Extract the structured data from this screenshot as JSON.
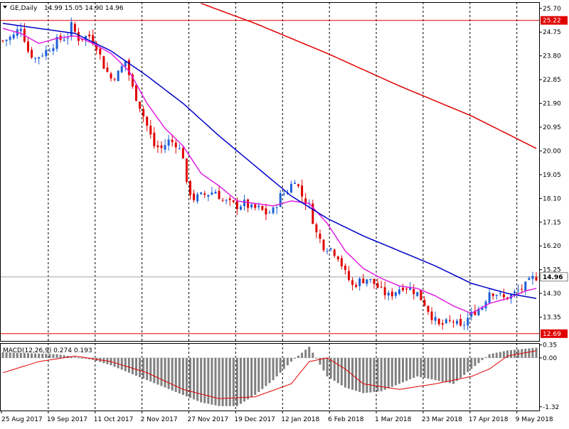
{
  "symbol_header": {
    "title": "GE,Daily",
    "ohlc": "14.99 15.05 14.90 14.96"
  },
  "macd_label": "MACD(12,26,9) 0.274 0.193",
  "colors": {
    "bull": "#1c5fd6",
    "bear": "#e00000",
    "ma_fast": "#e020e0",
    "ma_mid": "#0000c8",
    "ma_slow": "#e00000",
    "hline": "#e00000",
    "last_price_line": "#a0a0a0",
    "macd_hist": "#808080",
    "macd_signal": "#e00000"
  },
  "chart_data": [
    {
      "type": "candlestick",
      "title": "GE,Daily",
      "y_ticks": [
        "25.70",
        "24.75",
        "23.80",
        "22.85",
        "21.90",
        "20.95",
        "20.00",
        "19.05",
        "18.10",
        "17.15",
        "16.20",
        "15.25",
        "14.30",
        "13.35"
      ],
      "ylim": [
        12.4,
        25.95
      ],
      "x_ticks": [
        "25 Aug 2017",
        "19 Sep 2017",
        "11 Oct 2017",
        "2 Nov 2017",
        "27 Nov 2017",
        "19 Dec 2017",
        "12 Jan 2018",
        "6 Feb 2018",
        "1 Mar 2018",
        "23 Mar 2018",
        "17 Apr 2018",
        "9 May 2018"
      ],
      "horizontal_lines": [
        {
          "label": "25.22",
          "value": 25.22
        },
        {
          "label": "12.69",
          "value": 12.69
        }
      ],
      "last_price": {
        "label": "14.96",
        "value": 14.96
      },
      "close_path": [
        [
          0,
          24.4
        ],
        [
          3,
          24.6
        ],
        [
          5,
          25.0
        ],
        [
          7,
          24.0
        ],
        [
          9,
          23.7
        ],
        [
          12,
          24.0
        ],
        [
          15,
          24.4
        ],
        [
          18,
          24.6
        ],
        [
          19,
          25.0
        ],
        [
          21,
          24.5
        ],
        [
          24,
          24.6
        ],
        [
          26,
          24.2
        ],
        [
          28,
          23.4
        ],
        [
          30,
          22.9
        ],
        [
          32,
          23.1
        ],
        [
          34,
          23.6
        ],
        [
          36,
          22.5
        ],
        [
          38,
          21.8
        ],
        [
          40,
          21.0
        ],
        [
          42,
          20.2
        ],
        [
          44,
          20.1
        ],
        [
          46,
          20.4
        ],
        [
          48,
          20.3
        ],
        [
          50,
          19.8
        ],
        [
          51,
          18.6
        ],
        [
          53,
          18.1
        ],
        [
          55,
          18.2
        ],
        [
          57,
          18.3
        ],
        [
          59,
          18.4
        ],
        [
          61,
          18.0
        ],
        [
          63,
          17.9
        ],
        [
          65,
          17.8
        ],
        [
          67,
          17.9
        ],
        [
          69,
          17.7
        ],
        [
          71,
          17.7
        ],
        [
          73,
          17.5
        ],
        [
          75,
          17.6
        ],
        [
          77,
          18.2
        ],
        [
          79,
          18.4
        ],
        [
          81,
          18.9
        ],
        [
          83,
          18.2
        ],
        [
          85,
          17.8
        ],
        [
          87,
          16.7
        ],
        [
          89,
          16.2
        ],
        [
          91,
          16.1
        ],
        [
          93,
          15.8
        ],
        [
          95,
          15.1
        ],
        [
          97,
          14.6
        ],
        [
          99,
          14.8
        ],
        [
          101,
          14.9
        ],
        [
          103,
          14.7
        ],
        [
          105,
          14.4
        ],
        [
          107,
          14.2
        ],
        [
          109,
          14.4
        ],
        [
          111,
          14.6
        ],
        [
          113,
          14.5
        ],
        [
          115,
          14.3
        ],
        [
          117,
          13.9
        ],
        [
          119,
          13.4
        ],
        [
          121,
          13.0
        ],
        [
          123,
          13.1
        ],
        [
          125,
          13.2
        ],
        [
          127,
          12.9
        ],
        [
          129,
          13.3
        ],
        [
          131,
          13.6
        ],
        [
          133,
          13.8
        ],
        [
          135,
          14.4
        ],
        [
          137,
          14.3
        ],
        [
          139,
          14.1
        ],
        [
          141,
          14.2
        ],
        [
          143,
          14.4
        ],
        [
          145,
          14.6
        ],
        [
          147,
          14.9
        ],
        [
          148,
          14.96
        ]
      ],
      "series": [
        {
          "name": "",
          "kind": "ma",
          "color_key": "ma_fast",
          "points": [
            [
              0,
              24.9
            ],
            [
              5,
              24.7
            ],
            [
              10,
              24.3
            ],
            [
              15,
              24.5
            ],
            [
              20,
              24.6
            ],
            [
              25,
              24.3
            ],
            [
              30,
              23.9
            ],
            [
              35,
              23.2
            ],
            [
              40,
              21.9
            ],
            [
              45,
              20.9
            ],
            [
              50,
              20.2
            ],
            [
              55,
              19.1
            ],
            [
              60,
              18.6
            ],
            [
              65,
              18.0
            ],
            [
              70,
              17.9
            ],
            [
              75,
              17.8
            ],
            [
              80,
              18.0
            ],
            [
              85,
              17.9
            ],
            [
              90,
              17.1
            ],
            [
              95,
              16.0
            ],
            [
              100,
              15.3
            ],
            [
              105,
              14.9
            ],
            [
              110,
              14.6
            ],
            [
              115,
              14.5
            ],
            [
              120,
              14.2
            ],
            [
              125,
              13.8
            ],
            [
              130,
              13.5
            ],
            [
              135,
              13.9
            ],
            [
              140,
              14.1
            ],
            [
              145,
              14.4
            ],
            [
              148,
              14.5
            ]
          ]
        },
        {
          "name": "",
          "kind": "ma",
          "color_key": "ma_mid",
          "points": [
            [
              0,
              25.1
            ],
            [
              10,
              24.9
            ],
            [
              20,
              24.7
            ],
            [
              30,
              24.0
            ],
            [
              40,
              23.0
            ],
            [
              50,
              21.9
            ],
            [
              60,
              20.6
            ],
            [
              70,
              19.4
            ],
            [
              80,
              18.2
            ],
            [
              90,
              17.3
            ],
            [
              100,
              16.6
            ],
            [
              110,
              16.0
            ],
            [
              120,
              15.4
            ],
            [
              130,
              14.7
            ],
            [
              140,
              14.3
            ],
            [
              148,
              14.1
            ]
          ]
        },
        {
          "name": "",
          "kind": "ma",
          "color_key": "ma_slow",
          "points": [
            [
              55,
              25.9
            ],
            [
              70,
              25.1
            ],
            [
              90,
              23.9
            ],
            [
              110,
              22.6
            ],
            [
              130,
              21.4
            ],
            [
              148,
              20.1
            ]
          ]
        }
      ]
    },
    {
      "type": "histogram",
      "title": "MACD(12,26,9) 0.274 0.193",
      "y_ticks": [
        "0.35",
        "0.00",
        "-1.32"
      ],
      "ylim": [
        -1.42,
        0.4
      ],
      "hist_path": [
        [
          0,
          0.15
        ],
        [
          15,
          0.1
        ],
        [
          25,
          -0.05
        ],
        [
          30,
          -0.2
        ],
        [
          40,
          -0.6
        ],
        [
          50,
          -1.0
        ],
        [
          55,
          -1.2
        ],
        [
          60,
          -1.3
        ],
        [
          65,
          -1.3
        ],
        [
          70,
          -1.0
        ],
        [
          75,
          -0.6
        ],
        [
          80,
          -0.1
        ],
        [
          85,
          0.3
        ],
        [
          90,
          -0.5
        ],
        [
          95,
          -0.8
        ],
        [
          100,
          -0.95
        ],
        [
          105,
          -0.9
        ],
        [
          110,
          -0.7
        ],
        [
          115,
          -0.5
        ],
        [
          120,
          -0.6
        ],
        [
          125,
          -0.7
        ],
        [
          130,
          -0.3
        ],
        [
          135,
          0.1
        ],
        [
          140,
          0.2
        ],
        [
          148,
          0.274
        ]
      ],
      "signal_path": [
        [
          0,
          -0.4
        ],
        [
          10,
          -0.1
        ],
        [
          20,
          0.05
        ],
        [
          30,
          -0.1
        ],
        [
          40,
          -0.4
        ],
        [
          50,
          -0.85
        ],
        [
          60,
          -1.1
        ],
        [
          70,
          -1.05
        ],
        [
          80,
          -0.7
        ],
        [
          85,
          -0.1
        ],
        [
          90,
          0.0
        ],
        [
          95,
          -0.3
        ],
        [
          100,
          -0.7
        ],
        [
          110,
          -0.85
        ],
        [
          120,
          -0.7
        ],
        [
          125,
          -0.6
        ],
        [
          130,
          -0.5
        ],
        [
          135,
          -0.3
        ],
        [
          140,
          0.05
        ],
        [
          148,
          0.193
        ]
      ]
    }
  ]
}
